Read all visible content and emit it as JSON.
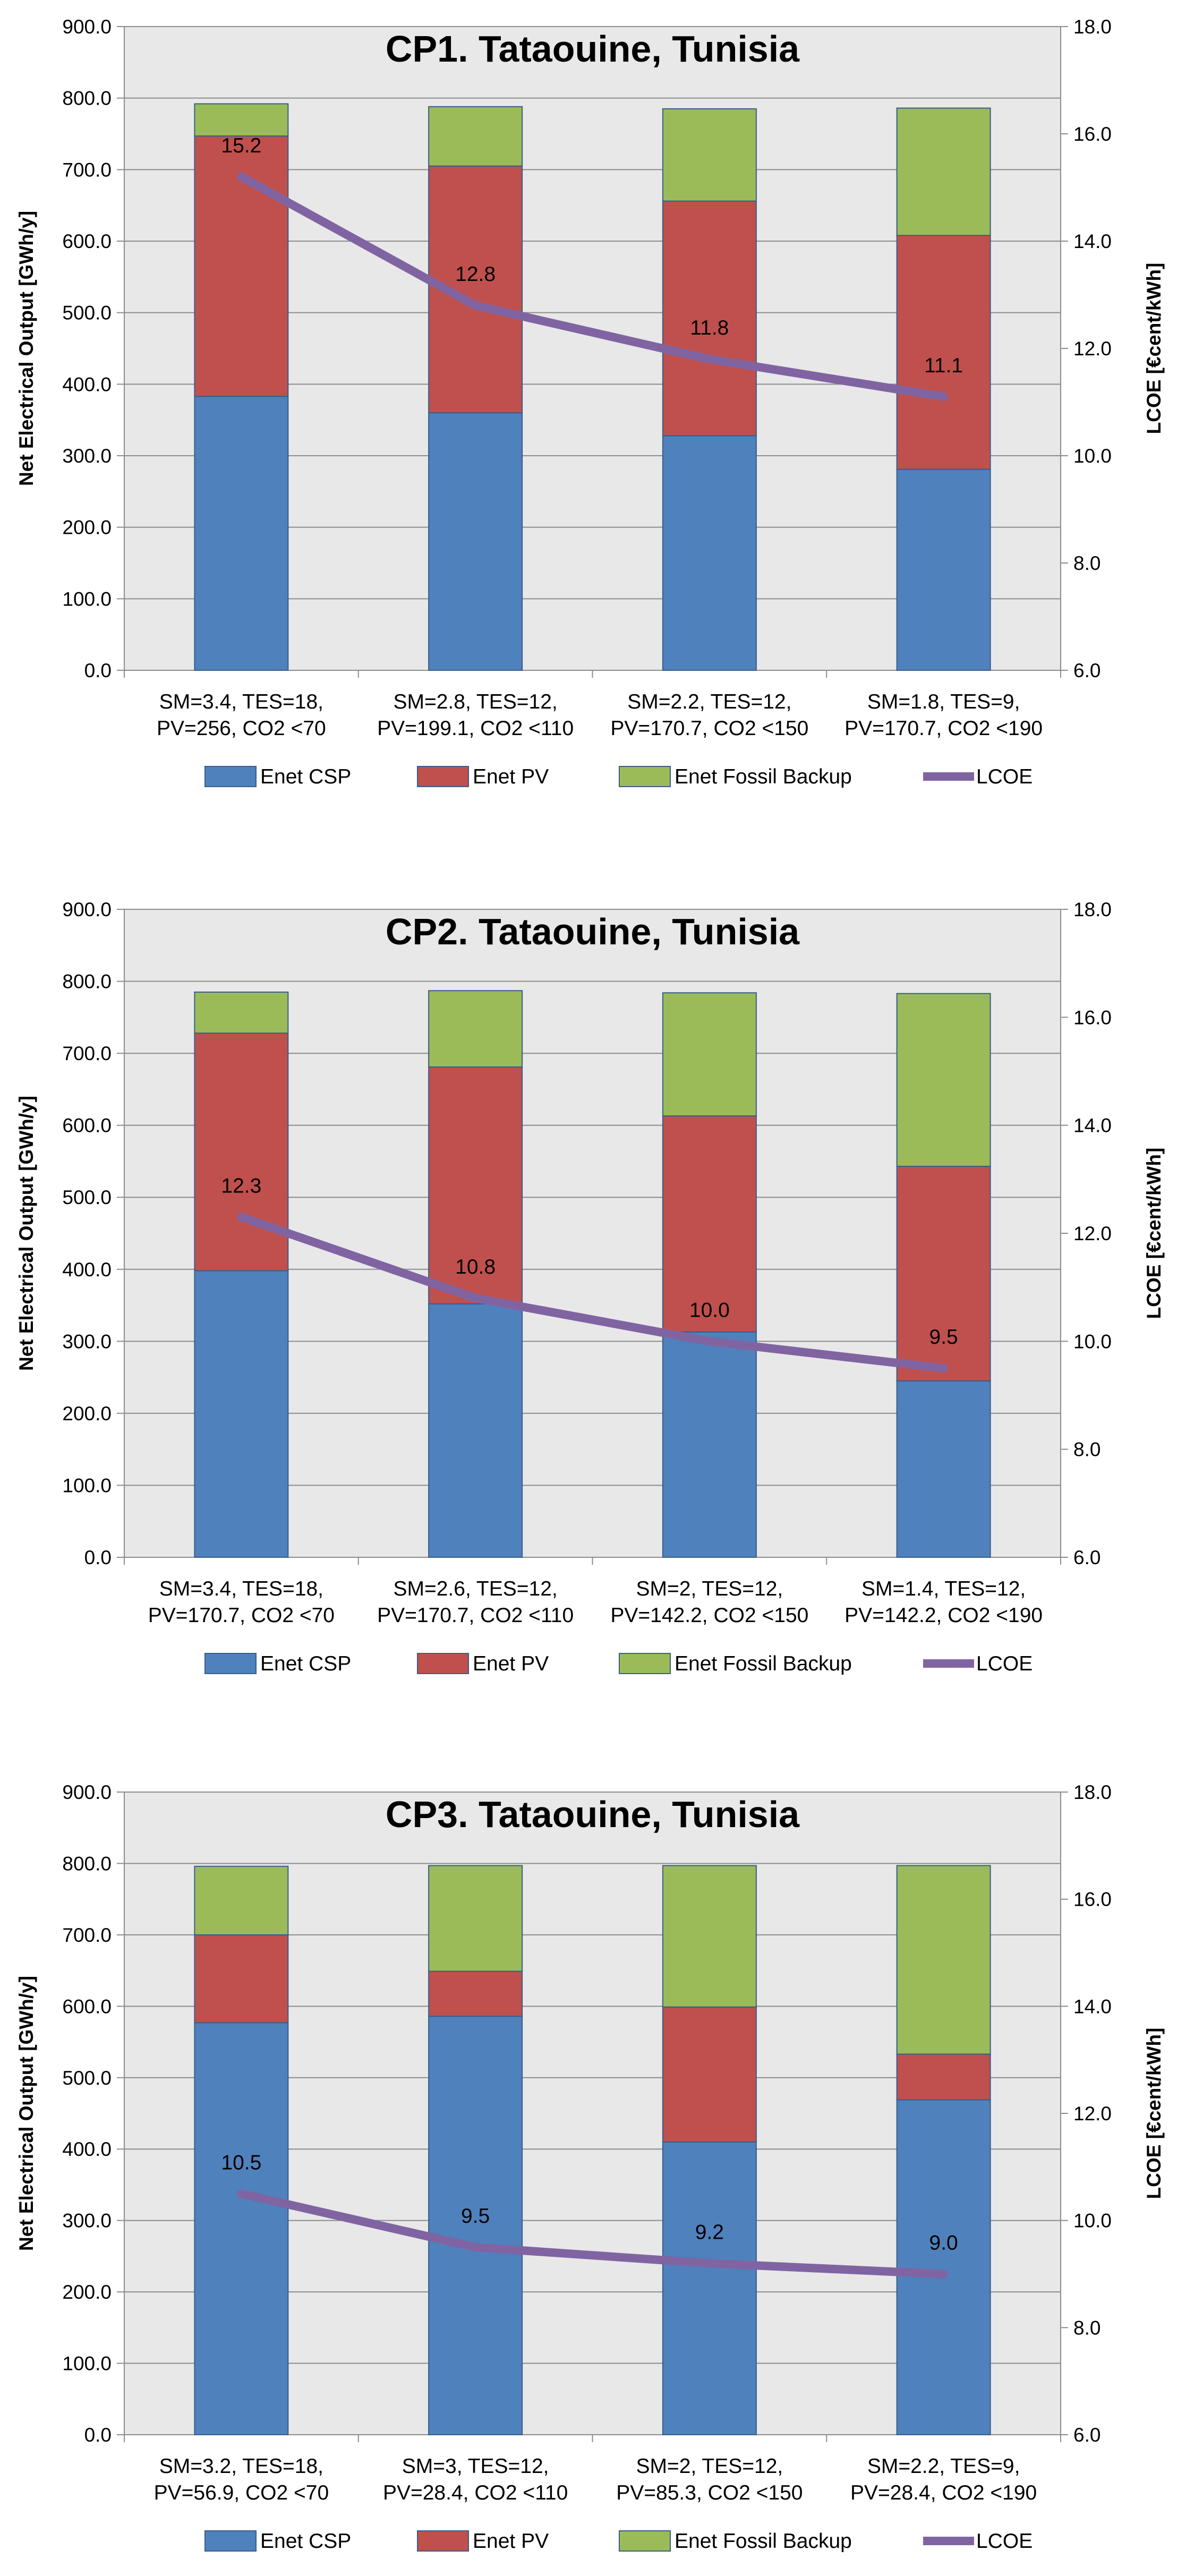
{
  "chart_data": [
    {
      "type": "bar",
      "stacked": true,
      "title": "CP1. Tataouine, Tunisia",
      "categories": [
        [
          "SM=3.4, TES=18,",
          "PV=256, CO2 <70"
        ],
        [
          "SM=2.8, TES=12,",
          "PV=199.1, CO2 <110"
        ],
        [
          "SM=2.2, TES=12,",
          "PV=170.7, CO2 <150"
        ],
        [
          "SM=1.8, TES=9,",
          "PV=170.7, CO2 <190"
        ]
      ],
      "series": [
        {
          "name": "Enet CSP",
          "axis": "left",
          "color": "#4f81bd",
          "values": [
            383,
            360,
            328,
            281
          ]
        },
        {
          "name": "Enet PV",
          "axis": "left",
          "color": "#c0504d",
          "values": [
            364,
            345,
            328,
            327
          ]
        },
        {
          "name": "Enet Fossil Backup",
          "axis": "left",
          "color": "#9bbb59",
          "values": [
            45,
            83,
            129,
            178
          ]
        },
        {
          "name": "LCOE",
          "axis": "right",
          "type": "line",
          "color": "#8064a2",
          "values": [
            15.2,
            12.8,
            11.8,
            11.1
          ]
        }
      ],
      "data_labels": [
        "15.2",
        "12.8",
        "11.8",
        "11.1"
      ],
      "ylabel": "Net Electrical Output [GWh/y]",
      "ylabel_right": "LCOE [€cent/kWh]",
      "ylim": [
        0,
        900
      ],
      "ylim_right": [
        6,
        18
      ],
      "yticks": [
        "0.0",
        "100.0",
        "200.0",
        "300.0",
        "400.0",
        "500.0",
        "600.0",
        "700.0",
        "800.0",
        "900.0"
      ],
      "yticks_right": [
        "6.0",
        "8.0",
        "10.0",
        "12.0",
        "14.0",
        "16.0",
        "18.0"
      ],
      "grid": true,
      "legend": "bottom"
    },
    {
      "type": "bar",
      "stacked": true,
      "title": "CP2. Tataouine, Tunisia",
      "categories": [
        [
          "SM=3.4, TES=18,",
          "PV=170.7, CO2 <70"
        ],
        [
          "SM=2.6, TES=12,",
          "PV=170.7, CO2 <110"
        ],
        [
          "SM=2, TES=12,",
          "PV=142.2, CO2 <150"
        ],
        [
          "SM=1.4, TES=12,",
          "PV=142.2, CO2 <190"
        ]
      ],
      "series": [
        {
          "name": "Enet CSP",
          "axis": "left",
          "color": "#4f81bd",
          "values": [
            398,
            352,
            313,
            245
          ]
        },
        {
          "name": "Enet PV",
          "axis": "left",
          "color": "#c0504d",
          "values": [
            330,
            329,
            300,
            298
          ]
        },
        {
          "name": "Enet Fossil Backup",
          "axis": "left",
          "color": "#9bbb59",
          "values": [
            57,
            106,
            171,
            240
          ]
        },
        {
          "name": "LCOE",
          "axis": "right",
          "type": "line",
          "color": "#8064a2",
          "values": [
            12.3,
            10.8,
            10.0,
            9.5
          ]
        }
      ],
      "data_labels": [
        "12.3",
        "10.8",
        "10.0",
        "9.5"
      ],
      "ylabel": "Net Electrical Output [GWh/y]",
      "ylabel_right": "LCOE [€cent/kWh]",
      "ylim": [
        0,
        900
      ],
      "ylim_right": [
        6,
        18
      ],
      "yticks": [
        "0.0",
        "100.0",
        "200.0",
        "300.0",
        "400.0",
        "500.0",
        "600.0",
        "700.0",
        "800.0",
        "900.0"
      ],
      "yticks_right": [
        "6.0",
        "8.0",
        "10.0",
        "12.0",
        "14.0",
        "16.0",
        "18.0"
      ],
      "grid": true,
      "legend": "bottom"
    },
    {
      "type": "bar",
      "stacked": true,
      "title": "CP3. Tataouine, Tunisia",
      "categories": [
        [
          "SM=3.2, TES=18,",
          "PV=56.9, CO2 <70"
        ],
        [
          "SM=3, TES=12,",
          "PV=28.4, CO2 <110"
        ],
        [
          "SM=2, TES=12,",
          "PV=85.3, CO2 <150"
        ],
        [
          "SM=2.2, TES=9,",
          "PV=28.4, CO2 <190"
        ]
      ],
      "series": [
        {
          "name": "Enet CSP",
          "axis": "left",
          "color": "#4f81bd",
          "values": [
            577,
            586,
            410,
            469
          ]
        },
        {
          "name": "Enet PV",
          "axis": "left",
          "color": "#c0504d",
          "values": [
            123,
            63,
            189,
            64
          ]
        },
        {
          "name": "Enet Fossil Backup",
          "axis": "left",
          "color": "#9bbb59",
          "values": [
            96,
            148,
            198,
            264
          ]
        },
        {
          "name": "LCOE",
          "axis": "right",
          "type": "line",
          "color": "#8064a2",
          "values": [
            10.5,
            9.5,
            9.2,
            9.0
          ]
        }
      ],
      "data_labels": [
        "10.5",
        "9.5",
        "9.2",
        "9.0"
      ],
      "ylabel": "Net Electrical Output [GWh/y]",
      "ylabel_right": "LCOE [€cent/kWh]",
      "ylim": [
        0,
        900
      ],
      "ylim_right": [
        6,
        18
      ],
      "yticks": [
        "0.0",
        "100.0",
        "200.0",
        "300.0",
        "400.0",
        "500.0",
        "600.0",
        "700.0",
        "800.0",
        "900.0"
      ],
      "yticks_right": [
        "6.0",
        "8.0",
        "10.0",
        "12.0",
        "14.0",
        "16.0",
        "18.0"
      ],
      "grid": true,
      "legend": "bottom"
    }
  ]
}
